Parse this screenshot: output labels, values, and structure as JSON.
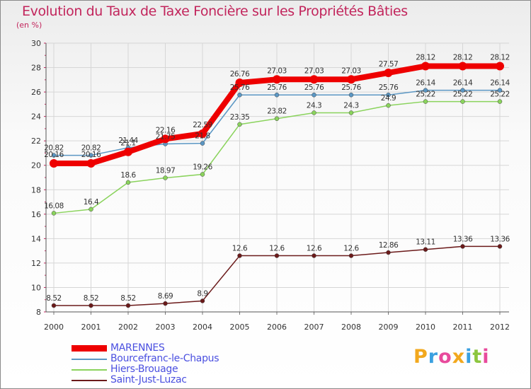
{
  "chart_data": {
    "type": "line",
    "title": "Evolution du Taux de Taxe Foncière sur les Propriétés Bâties",
    "ylabel": "(en %)",
    "xlabel": "",
    "x": [
      "2000",
      "2001",
      "2002",
      "2003",
      "2004",
      "2005",
      "2006",
      "2007",
      "2008",
      "2009",
      "2010",
      "2011",
      "2012"
    ],
    "ylim": [
      8,
      30
    ],
    "yticks": [
      8,
      10,
      12,
      14,
      16,
      18,
      20,
      22,
      24,
      26,
      28,
      30
    ],
    "grid": true,
    "series": [
      {
        "name": "Bourcefranc-le-Chapus",
        "color": "#5b97c4",
        "values": [
          20.82,
          20.82,
          21.44,
          21.75,
          21.8,
          25.76,
          25.76,
          25.76,
          25.76,
          25.76,
          26.14,
          26.14,
          26.14
        ],
        "labels": [
          "20.82",
          "20.82",
          "21.44",
          "21.75",
          "21.8",
          "25.76",
          "25.76",
          "25.76",
          "25.76",
          "25.76",
          "26.14",
          "26.14",
          "26.14"
        ]
      },
      {
        "name": "Hiers-Brouage",
        "color": "#8ad35c",
        "values": [
          16.08,
          16.4,
          18.6,
          18.97,
          19.26,
          23.35,
          23.82,
          24.3,
          24.3,
          24.9,
          25.22,
          25.22,
          25.22
        ],
        "labels": [
          "16.08",
          "16.4",
          "18.6",
          "18.97",
          "19.26",
          "23.35",
          "23.82",
          "24.3",
          "24.3",
          "24.9",
          "25.22",
          "25.22",
          "25.22"
        ]
      },
      {
        "name": "Saint-Just-Luzac",
        "color": "#6b1a1a",
        "values": [
          8.52,
          8.52,
          8.52,
          8.69,
          8.9,
          12.6,
          12.6,
          12.6,
          12.6,
          12.86,
          13.11,
          13.36,
          13.36
        ],
        "labels": [
          "8.52",
          "8.52",
          "8.52",
          "8.69",
          "8.9",
          "12.6",
          "12.6",
          "12.6",
          "12.6",
          "12.86",
          "13.11",
          "13.36",
          "13.36"
        ]
      },
      {
        "name": "MARENNES",
        "color": "#ee0000",
        "values": [
          20.16,
          20.16,
          21.1,
          22.16,
          22.59,
          26.76,
          27.03,
          27.03,
          27.03,
          27.57,
          28.12,
          28.12,
          28.12
        ],
        "labels": [
          "20.16",
          "20.16",
          "21.1",
          "22.16",
          "22.59",
          "26.76",
          "27.03",
          "27.03",
          "27.03",
          "27.57",
          "28.12",
          "28.12",
          "28.12"
        ]
      }
    ],
    "legend": [
      "MARENNES",
      "Bourcefranc-le-Chapus",
      "Hiers-Brouage",
      "Saint-Just-Luzac"
    ]
  },
  "logo": {
    "text": "Proxiti",
    "letters": [
      "P",
      "r",
      "o",
      "x",
      "i",
      "t",
      "i"
    ],
    "colors": [
      "#f2a81d",
      "#3aa0e0",
      "#e84a9c",
      "#f2a81d",
      "#3aa0e0",
      "#8cc63f",
      "#e84a9c"
    ]
  }
}
